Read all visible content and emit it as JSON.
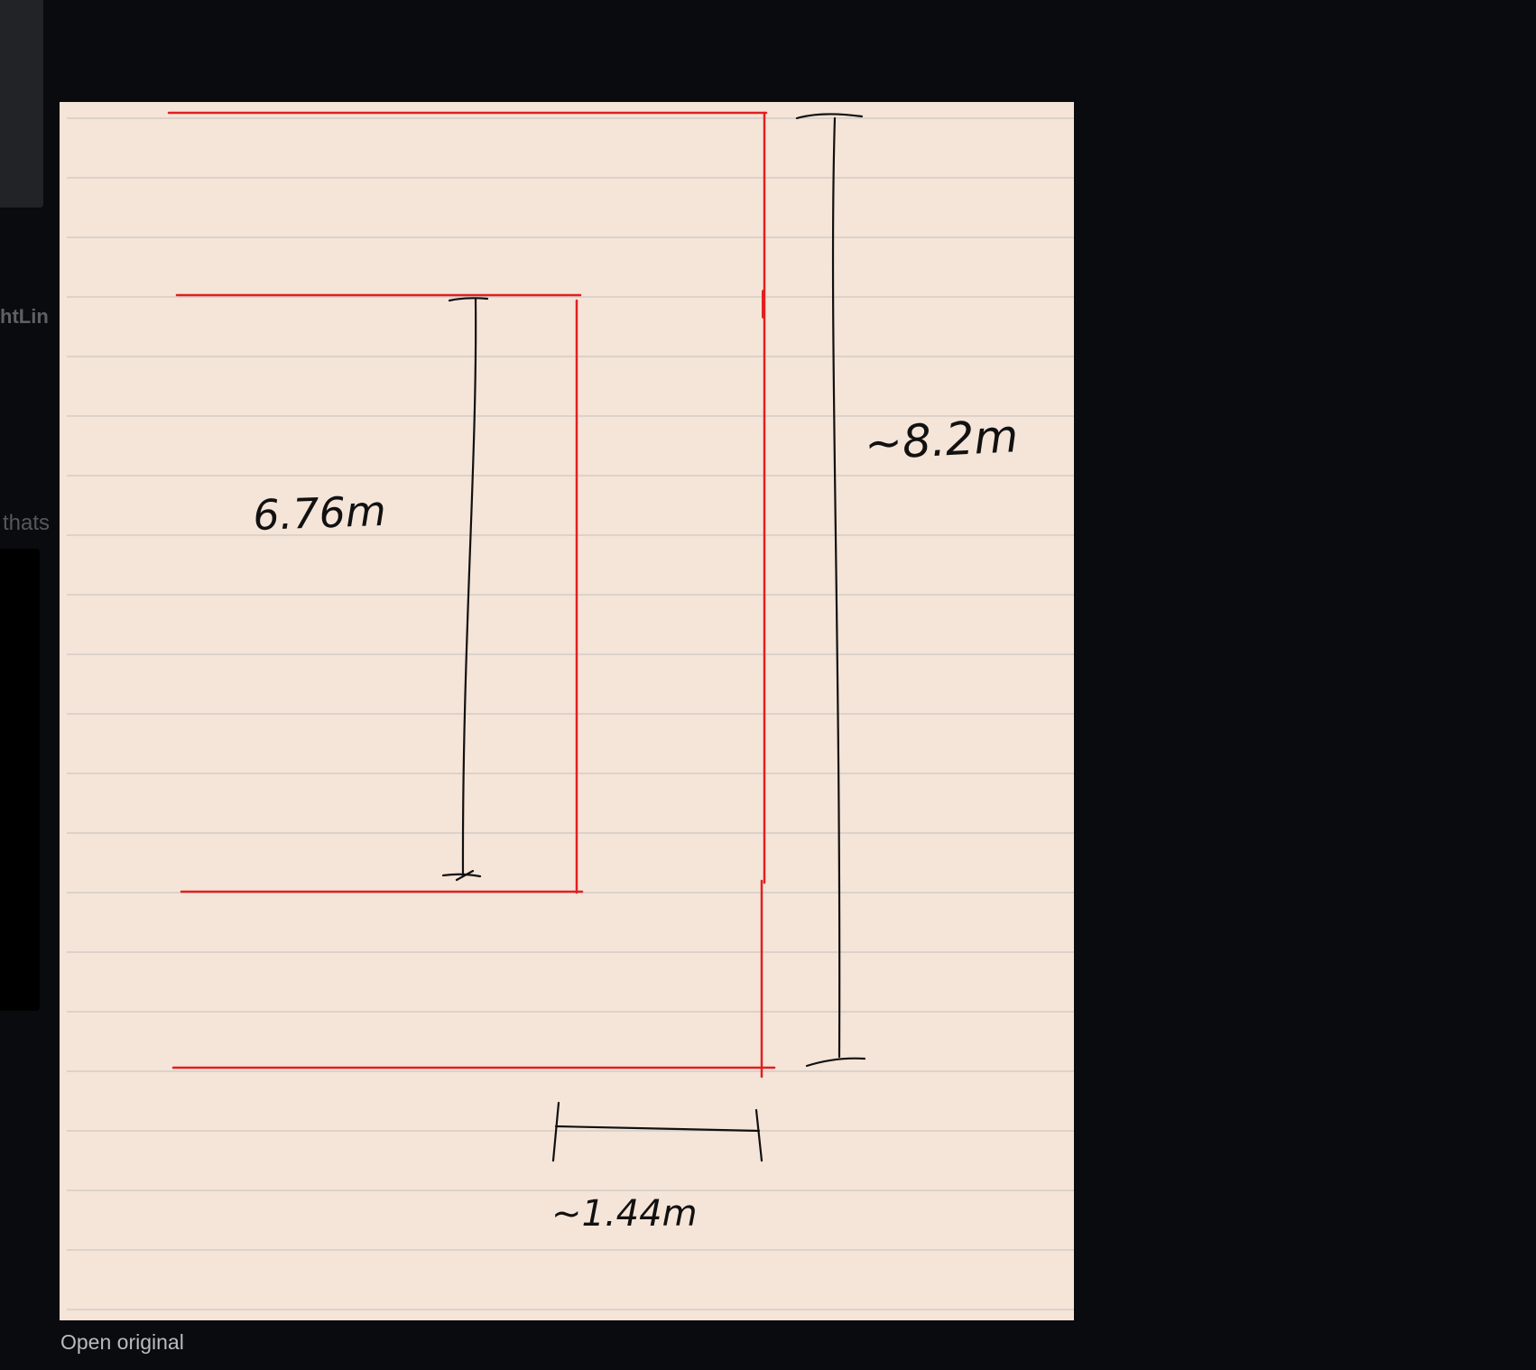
{
  "background": {
    "partial_label_1": "htLin",
    "partial_label_2": "thats"
  },
  "image": {
    "annotations": {
      "inner_height": "6.76m",
      "outer_height": "~8.2m",
      "width": "~1.44m"
    },
    "colors": {
      "paper": "#f5e4d8",
      "rule_lines": "#cfc8c2",
      "walls": "#e02020",
      "dimension_ink": "#111111"
    }
  },
  "footer": {
    "open_original_label": "Open original"
  }
}
